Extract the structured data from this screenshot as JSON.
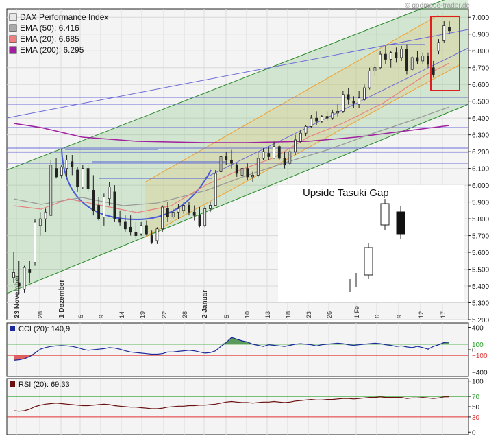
{
  "watermark": "© godmode-trader.de",
  "legend": [
    {
      "label": "DAX Performance Index",
      "color": "#e8e8e8"
    },
    {
      "label": "EMA (50): 6.416",
      "color": "#aaaaaa"
    },
    {
      "label": "EMA (20): 6.685",
      "color": "#f08080"
    },
    {
      "label": "EMA (200): 6.295",
      "color": "#a020a0"
    }
  ],
  "annotation": "Upside Tasuki Gap",
  "chart_data": [
    {
      "type": "candlestick",
      "title": "DAX Performance Index",
      "ylim": [
        5200,
        7050
      ],
      "y_ticks": [
        5200,
        5300,
        5400,
        5500,
        5600,
        5700,
        5800,
        5900,
        6000,
        6100,
        6200,
        6300,
        6400,
        6500,
        6600,
        6700,
        6800,
        6900,
        7000
      ],
      "y_tick_labels": [
        "5.200",
        "5.300",
        "5.400",
        "5.500",
        "5.600",
        "5.700",
        "5.800",
        "5.900",
        "6.000",
        "6.100",
        "6.200",
        "6.300",
        "6.400",
        "6.500",
        "6.600",
        "6.700",
        "6.800",
        "6.900",
        "7.000"
      ],
      "x_labels": [
        "23 November",
        "28",
        "1 Dezember",
        "6",
        "9",
        "14",
        "19",
        "22",
        "28",
        "2 Januar",
        "5",
        "10",
        "13",
        "18",
        "23",
        "26",
        "1 Fe",
        "6",
        "9",
        "12",
        "17"
      ],
      "ohlc": [
        [
          5450,
          5600,
          5420,
          5480
        ],
        [
          5420,
          5550,
          5350,
          5400
        ],
        [
          5380,
          5520,
          5360,
          5510
        ],
        [
          5500,
          5550,
          5420,
          5480
        ],
        [
          5540,
          5800,
          5520,
          5780
        ],
        [
          5760,
          5840,
          5700,
          5800
        ],
        [
          5800,
          5860,
          5720,
          5840
        ],
        [
          5820,
          6150,
          5820,
          6120
        ],
        [
          6100,
          6160,
          6040,
          6050
        ],
        [
          6060,
          6120,
          6040,
          6110
        ],
        [
          6100,
          6180,
          6050,
          6150
        ],
        [
          6140,
          6180,
          6060,
          6110
        ],
        [
          6090,
          6110,
          5960,
          5990
        ],
        [
          5990,
          6120,
          5980,
          6100
        ],
        [
          6100,
          6120,
          5960,
          5980
        ],
        [
          5970,
          6060,
          5820,
          5850
        ],
        [
          5880,
          5930,
          5790,
          5800
        ],
        [
          5810,
          5950,
          5760,
          5930
        ],
        [
          5920,
          6020,
          5880,
          5990
        ],
        [
          5960,
          6000,
          5780,
          5800
        ],
        [
          5800,
          5850,
          5760,
          5780
        ],
        [
          5780,
          5820,
          5720,
          5740
        ],
        [
          5750,
          5820,
          5700,
          5720
        ],
        [
          5720,
          5780,
          5680,
          5700
        ],
        [
          5710,
          5780,
          5700,
          5760
        ],
        [
          5760,
          5790,
          5700,
          5710
        ],
        [
          5700,
          5730,
          5650,
          5660
        ],
        [
          5670,
          5750,
          5650,
          5740
        ],
        [
          5740,
          5880,
          5720,
          5870
        ],
        [
          5860,
          5900,
          5780,
          5810
        ],
        [
          5810,
          5860,
          5800,
          5840
        ],
        [
          5840,
          5890,
          5800,
          5860
        ],
        [
          5850,
          5900,
          5830,
          5880
        ],
        [
          5880,
          5900,
          5820,
          5840
        ],
        [
          5840,
          5880,
          5790,
          5820
        ],
        [
          5820,
          5870,
          5750,
          5760
        ],
        [
          5760,
          5880,
          5750,
          5860
        ],
        [
          5860,
          5900,
          5840,
          5880
        ],
        [
          5880,
          6090,
          5880,
          6070
        ],
        [
          6080,
          6180,
          6070,
          6170
        ],
        [
          6170,
          6200,
          6120,
          6150
        ],
        [
          6150,
          6210,
          6100,
          6130
        ],
        [
          6120,
          6130,
          6050,
          6070
        ],
        [
          6060,
          6120,
          6030,
          6100
        ],
        [
          6100,
          6130,
          6030,
          6050
        ],
        [
          6050,
          6080,
          6020,
          6060
        ],
        [
          6060,
          6200,
          6050,
          6160
        ],
        [
          6160,
          6220,
          6150,
          6200
        ],
        [
          6190,
          6230,
          6150,
          6170
        ],
        [
          6160,
          6260,
          6160,
          6230
        ],
        [
          6230,
          6240,
          6150,
          6160
        ],
        [
          6160,
          6200,
          6100,
          6120
        ],
        [
          6130,
          6220,
          6120,
          6200
        ],
        [
          6200,
          6300,
          6180,
          6270
        ],
        [
          6260,
          6330,
          6250,
          6310
        ],
        [
          6310,
          6360,
          6290,
          6350
        ],
        [
          6350,
          6420,
          6340,
          6400
        ],
        [
          6400,
          6440,
          6360,
          6380
        ],
        [
          6380,
          6420,
          6370,
          6410
        ],
        [
          6410,
          6440,
          6380,
          6400
        ],
        [
          6400,
          6450,
          6390,
          6430
        ],
        [
          6430,
          6480,
          6410,
          6440
        ],
        [
          6440,
          6560,
          6430,
          6540
        ],
        [
          6540,
          6580,
          6480,
          6510
        ],
        [
          6500,
          6530,
          6460,
          6490
        ],
        [
          6480,
          6560,
          6460,
          6520
        ],
        [
          6510,
          6600,
          6500,
          6580
        ],
        [
          6580,
          6700,
          6570,
          6680
        ],
        [
          6680,
          6720,
          6650,
          6700
        ],
        [
          6700,
          6800,
          6690,
          6780
        ],
        [
          6780,
          6830,
          6720,
          6750
        ],
        [
          6750,
          6800,
          6700,
          6790
        ],
        [
          6790,
          6820,
          6730,
          6760
        ],
        [
          6760,
          6830,
          6740,
          6810
        ],
        [
          6810,
          6840,
          6660,
          6680
        ],
        [
          6690,
          6770,
          6680,
          6760
        ],
        [
          6760,
          6800,
          6720,
          6740
        ],
        [
          6740,
          6790,
          6720,
          6770
        ],
        [
          6770,
          6790,
          6700,
          6720
        ],
        [
          6700,
          6740,
          6640,
          6660
        ],
        [
          6800,
          6870,
          6780,
          6850
        ],
        [
          6860,
          6980,
          6850,
          6950
        ],
        [
          6940,
          6980,
          6900,
          6920
        ]
      ]
    },
    {
      "type": "line",
      "title": "CCI (20): 140,9",
      "ylim": [
        -480,
        480
      ],
      "y_ticks": [
        400,
        0,
        -400
      ],
      "y_tick_labels": [
        "400",
        "0",
        "−400"
      ],
      "ref_lines": [
        {
          "value": 100,
          "label": "100",
          "color": "#2aa02a"
        },
        {
          "value": -100,
          "label": "−100",
          "color": "#e03030"
        }
      ],
      "values": [
        -190,
        -180,
        -160,
        -120,
        -60,
        10,
        40,
        60,
        70,
        75,
        70,
        60,
        40,
        10,
        -10,
        0,
        10,
        20,
        40,
        30,
        10,
        -20,
        -40,
        -50,
        -60,
        -70,
        -80,
        -80,
        -70,
        -40,
        -40,
        -30,
        -20,
        -10,
        -20,
        -40,
        -60,
        -50,
        -20,
        60,
        130,
        220,
        190,
        160,
        140,
        100,
        80,
        60,
        90,
        80,
        70,
        60,
        80,
        100,
        110,
        100,
        90,
        70,
        90,
        100,
        110,
        120,
        110,
        90,
        80,
        90,
        100,
        110,
        120,
        110,
        90,
        80,
        60,
        70,
        50,
        40,
        60,
        40,
        10,
        60,
        90,
        130,
        140.9
      ]
    },
    {
      "type": "line",
      "title": "RSI (20): 69,33",
      "ylim": [
        -5,
        105
      ],
      "y_ticks": [
        100,
        70,
        50,
        30,
        0
      ],
      "y_tick_labels": [
        "100",
        "70",
        "50",
        "30",
        "0"
      ],
      "ref_lines": [
        {
          "value": 70,
          "label": "70",
          "color": "#2aa02a"
        },
        {
          "value": 30,
          "label": "30",
          "color": "#e03030"
        }
      ],
      "values": [
        42,
        41,
        42,
        45,
        50,
        53,
        55,
        56,
        57,
        56,
        55,
        54,
        53,
        52,
        52,
        53,
        54,
        55,
        54,
        52,
        51,
        50,
        49,
        49,
        48,
        47,
        46,
        46,
        47,
        49,
        50,
        51,
        51,
        52,
        52,
        53,
        53,
        54,
        55,
        57,
        59,
        60,
        59,
        58,
        58,
        57,
        58,
        59,
        59,
        60,
        59,
        58,
        59,
        61,
        62,
        63,
        64,
        63,
        63,
        64,
        64,
        65,
        66,
        66,
        65,
        66,
        67,
        68,
        68,
        69,
        68,
        68,
        68,
        68,
        66,
        67,
        67,
        68,
        67,
        66,
        67,
        69,
        69.33
      ]
    }
  ]
}
